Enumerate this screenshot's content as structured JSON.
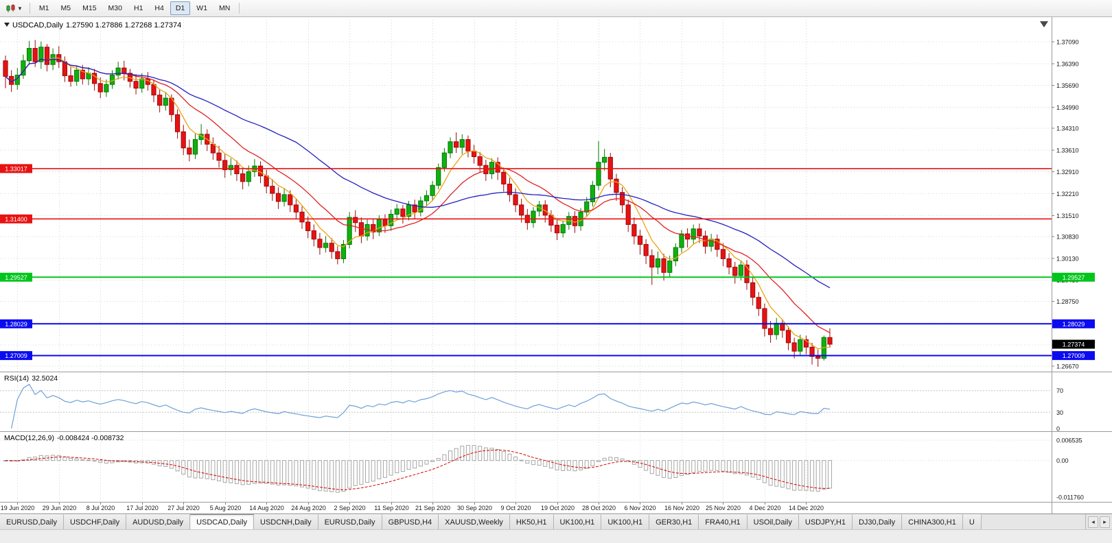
{
  "toolbar": {
    "periods": [
      "M1",
      "M5",
      "M15",
      "M30",
      "H1",
      "H4",
      "D1",
      "W1",
      "MN"
    ],
    "active_period": "D1"
  },
  "chart": {
    "symbol_title": "USDCAD,Daily",
    "ohlc_text": "1.27590 1.27886 1.27268 1.27374"
  },
  "chart_data": {
    "type": "candlestick",
    "symbol": "USDCAD",
    "timeframe": "Daily",
    "ohlc_display": {
      "open": "1.27590",
      "high": "1.27886",
      "low": "1.27268",
      "close": "1.27374"
    },
    "y_ticks": [
      "1.37090",
      "1.36390",
      "1.35690",
      "1.34990",
      "1.34310",
      "1.33610",
      "1.32910",
      "1.32210",
      "1.31510",
      "1.30830",
      "1.30130",
      "1.29430",
      "1.28750",
      "1.28050",
      "1.27350",
      "1.26670"
    ],
    "x_labels": [
      "19 Jun 2020",
      "29 Jun 2020",
      "8 Jul 2020",
      "17 Jul 2020",
      "27 Jul 2020",
      "5 Aug 2020",
      "14 Aug 2020",
      "24 Aug 2020",
      "2 Sep 2020",
      "11 Sep 2020",
      "21 Sep 2020",
      "30 Sep 2020",
      "9 Oct 2020",
      "19 Oct 2020",
      "28 Oct 2020",
      "6 Nov 2020",
      "16 Nov 2020",
      "25 Nov 2020",
      "4 Dec 2020",
      "14 Dec 2020"
    ],
    "x_label_start_index": 2,
    "x_label_step": 7,
    "current_price_tag": {
      "label": "1.27374",
      "price": 1.27374,
      "bg": "#000000",
      "fg": "#ffffff"
    },
    "hlines": [
      {
        "price": 1.33017,
        "label": "1.33017",
        "color": "#e81212",
        "width": 1.6,
        "tags": [
          "left"
        ]
      },
      {
        "price": 1.314,
        "label": "1.31400",
        "color": "#e81212",
        "width": 1.6,
        "tags": [
          "left"
        ]
      },
      {
        "price": 1.29527,
        "label": "1.29527",
        "color": "#00c61c",
        "width": 2,
        "tags": [
          "left",
          "right"
        ]
      },
      {
        "price": 1.28029,
        "label": "1.28029",
        "color": "#0b0bf0",
        "width": 2,
        "tags": [
          "left",
          "right"
        ]
      },
      {
        "price": 1.27009,
        "label": "1.27009",
        "color": "#0b0bf0",
        "width": 2,
        "tags": [
          "left",
          "right"
        ]
      }
    ],
    "ma_lines": [
      {
        "name": "fast-ma",
        "period": 8,
        "color": "#e8a414"
      },
      {
        "name": "mid-ma",
        "period": 20,
        "color": "#e02020"
      },
      {
        "name": "slow-ma",
        "period": 50,
        "color": "#2020c0"
      }
    ],
    "candle_colors": {
      "bull": "#0fb00f",
      "bull_stroke": "#067806",
      "bear": "#e81212",
      "bear_stroke": "#9c0a0a"
    },
    "indicators": {
      "rsi": {
        "name": "RSI(14)",
        "value": "32.5024",
        "period": 14,
        "levels": [
          70,
          30
        ],
        "axis_labels": [
          {
            "v": 70,
            "label": "70"
          },
          {
            "v": 30,
            "label": "30"
          },
          {
            "v": 0,
            "label": "0"
          }
        ],
        "line_color": "#6f9fd8"
      },
      "macd": {
        "name": "MACD(12,26,9)",
        "values": "-0.008424 -0.008732",
        "fast": 12,
        "slow": 26,
        "signal": 9,
        "axis_labels": [
          {
            "v": 0.006535,
            "label": "0.006535"
          },
          {
            "v": 0,
            "label": "0.00"
          },
          {
            "v": -0.01176,
            "label": "-0.011760"
          }
        ],
        "hist_color": "#a6a6a6",
        "signal_color": "#d40000"
      }
    },
    "candles": [
      [
        1.3648,
        1.3665,
        1.356,
        1.3598
      ],
      [
        1.3598,
        1.3618,
        1.3548,
        1.3572
      ],
      [
        1.3572,
        1.3625,
        1.3555,
        1.3602
      ],
      [
        1.3602,
        1.3668,
        1.359,
        1.3648
      ],
      [
        1.3648,
        1.3712,
        1.3635,
        1.3688
      ],
      [
        1.3688,
        1.3715,
        1.3628,
        1.3645
      ],
      [
        1.3645,
        1.371,
        1.3622,
        1.3692
      ],
      [
        1.3692,
        1.3702,
        1.3614,
        1.3636
      ],
      [
        1.3636,
        1.3688,
        1.3618,
        1.3668
      ],
      [
        1.3668,
        1.3695,
        1.3625,
        1.3645
      ],
      [
        1.3645,
        1.3662,
        1.358,
        1.36
      ],
      [
        1.36,
        1.3628,
        1.3565,
        1.3582
      ],
      [
        1.3582,
        1.3632,
        1.3568,
        1.3618
      ],
      [
        1.3618,
        1.3635,
        1.3572,
        1.359
      ],
      [
        1.359,
        1.3628,
        1.357,
        1.3608
      ],
      [
        1.3608,
        1.3622,
        1.3552,
        1.3575
      ],
      [
        1.3575,
        1.3595,
        1.3528,
        1.3548
      ],
      [
        1.3548,
        1.3588,
        1.3532,
        1.3572
      ],
      [
        1.3572,
        1.3618,
        1.3558,
        1.3602
      ],
      [
        1.3602,
        1.3645,
        1.3588,
        1.3625
      ],
      [
        1.3625,
        1.3648,
        1.3585,
        1.3608
      ],
      [
        1.3608,
        1.3622,
        1.3562,
        1.3582
      ],
      [
        1.3582,
        1.3605,
        1.354,
        1.356
      ],
      [
        1.356,
        1.3608,
        1.3545,
        1.359
      ],
      [
        1.359,
        1.3612,
        1.3552,
        1.3572
      ],
      [
        1.3572,
        1.3588,
        1.3515,
        1.3538
      ],
      [
        1.3538,
        1.3555,
        1.3482,
        1.3505
      ],
      [
        1.3505,
        1.3548,
        1.3488,
        1.3528
      ],
      [
        1.3528,
        1.354,
        1.3452,
        1.3475
      ],
      [
        1.3475,
        1.3492,
        1.3398,
        1.342
      ],
      [
        1.342,
        1.3442,
        1.3345,
        1.3368
      ],
      [
        1.3368,
        1.3395,
        1.3325,
        1.3348
      ],
      [
        1.3348,
        1.3415,
        1.3332,
        1.3395
      ],
      [
        1.3395,
        1.3445,
        1.3378,
        1.3412
      ],
      [
        1.3412,
        1.3428,
        1.3358,
        1.338
      ],
      [
        1.338,
        1.3402,
        1.333,
        1.3352
      ],
      [
        1.3352,
        1.3375,
        1.3305,
        1.3328
      ],
      [
        1.3328,
        1.3348,
        1.3272,
        1.3298
      ],
      [
        1.3298,
        1.3335,
        1.328,
        1.3312
      ],
      [
        1.3312,
        1.3328,
        1.3262,
        1.3285
      ],
      [
        1.3285,
        1.3305,
        1.3235,
        1.326
      ],
      [
        1.326,
        1.3312,
        1.3245,
        1.3292
      ],
      [
        1.3292,
        1.3332,
        1.3275,
        1.331
      ],
      [
        1.331,
        1.3325,
        1.3255,
        1.3278
      ],
      [
        1.3278,
        1.3298,
        1.3222,
        1.3245
      ],
      [
        1.3245,
        1.3268,
        1.3198,
        1.3222
      ],
      [
        1.3222,
        1.3242,
        1.3172,
        1.3196
      ],
      [
        1.3196,
        1.3238,
        1.318,
        1.3218
      ],
      [
        1.3218,
        1.3232,
        1.3162,
        1.3185
      ],
      [
        1.3185,
        1.3205,
        1.3138,
        1.3162
      ],
      [
        1.3162,
        1.318,
        1.3108,
        1.313
      ],
      [
        1.313,
        1.3148,
        1.3078,
        1.3102
      ],
      [
        1.3102,
        1.3122,
        1.3052,
        1.3075
      ],
      [
        1.3075,
        1.3095,
        1.3025,
        1.3048
      ],
      [
        1.3048,
        1.3085,
        1.3032,
        1.3062
      ],
      [
        1.3062,
        1.3078,
        1.3012,
        1.3035
      ],
      [
        1.3035,
        1.3052,
        1.2994,
        1.3012
      ],
      [
        1.3012,
        1.3072,
        1.2998,
        1.3058
      ],
      [
        1.3058,
        1.3162,
        1.3045,
        1.3145
      ],
      [
        1.3145,
        1.3168,
        1.3098,
        1.3128
      ],
      [
        1.3128,
        1.3145,
        1.3062,
        1.3085
      ],
      [
        1.3085,
        1.3138,
        1.307,
        1.3122
      ],
      [
        1.3122,
        1.314,
        1.3075,
        1.3098
      ],
      [
        1.3098,
        1.3152,
        1.3085,
        1.3138
      ],
      [
        1.3138,
        1.3155,
        1.3095,
        1.3118
      ],
      [
        1.3118,
        1.317,
        1.3102,
        1.3155
      ],
      [
        1.3155,
        1.3188,
        1.3138,
        1.3172
      ],
      [
        1.3172,
        1.3185,
        1.3125,
        1.3148
      ],
      [
        1.3148,
        1.3198,
        1.3135,
        1.3185
      ],
      [
        1.3185,
        1.3202,
        1.314,
        1.3162
      ],
      [
        1.3162,
        1.3212,
        1.3148,
        1.3198
      ],
      [
        1.3198,
        1.3232,
        1.3182,
        1.3215
      ],
      [
        1.3215,
        1.3262,
        1.3198,
        1.3248
      ],
      [
        1.3248,
        1.3318,
        1.3235,
        1.3305
      ],
      [
        1.3305,
        1.3368,
        1.3292,
        1.3352
      ],
      [
        1.3352,
        1.3402,
        1.3335,
        1.3388
      ],
      [
        1.3388,
        1.3418,
        1.3352,
        1.337
      ],
      [
        1.337,
        1.3412,
        1.3348,
        1.3395
      ],
      [
        1.3395,
        1.3408,
        1.3338,
        1.3358
      ],
      [
        1.3358,
        1.3378,
        1.3318,
        1.334
      ],
      [
        1.334,
        1.3355,
        1.3288,
        1.3312
      ],
      [
        1.3312,
        1.333,
        1.3262,
        1.3285
      ],
      [
        1.3285,
        1.3335,
        1.3268,
        1.3322
      ],
      [
        1.3322,
        1.3338,
        1.3265,
        1.329
      ],
      [
        1.329,
        1.3305,
        1.3228,
        1.3252
      ],
      [
        1.3252,
        1.3272,
        1.3195,
        1.3218
      ],
      [
        1.3218,
        1.3238,
        1.3162,
        1.3185
      ],
      [
        1.3185,
        1.3205,
        1.3128,
        1.3152
      ],
      [
        1.3152,
        1.3172,
        1.3105,
        1.3128
      ],
      [
        1.3128,
        1.3178,
        1.3112,
        1.3165
      ],
      [
        1.3165,
        1.3198,
        1.3148,
        1.3185
      ],
      [
        1.3185,
        1.32,
        1.3128,
        1.3152
      ],
      [
        1.3152,
        1.3168,
        1.3098,
        1.312
      ],
      [
        1.312,
        1.314,
        1.3072,
        1.3095
      ],
      [
        1.3095,
        1.3135,
        1.308,
        1.3122
      ],
      [
        1.3122,
        1.3162,
        1.3105,
        1.3148
      ],
      [
        1.3148,
        1.3165,
        1.3095,
        1.3118
      ],
      [
        1.3118,
        1.3175,
        1.3102,
        1.3162
      ],
      [
        1.3162,
        1.321,
        1.3148,
        1.3195
      ],
      [
        1.3195,
        1.3262,
        1.318,
        1.3248
      ],
      [
        1.3248,
        1.339,
        1.3232,
        1.3322
      ],
      [
        1.3322,
        1.3365,
        1.3295,
        1.3338
      ],
      [
        1.3338,
        1.3352,
        1.3242,
        1.3268
      ],
      [
        1.3268,
        1.3285,
        1.3198,
        1.3225
      ],
      [
        1.3225,
        1.3242,
        1.3158,
        1.3185
      ],
      [
        1.3185,
        1.3202,
        1.3098,
        1.3122
      ],
      [
        1.3122,
        1.3145,
        1.3058,
        1.3085
      ],
      [
        1.3085,
        1.3105,
        1.3025,
        1.3058
      ],
      [
        1.3058,
        1.3075,
        1.2995,
        1.3022
      ],
      [
        1.3022,
        1.3042,
        1.2928,
        1.2985
      ],
      [
        1.2985,
        1.3035,
        1.2962,
        1.3012
      ],
      [
        1.3012,
        1.3028,
        1.2942,
        1.2968
      ],
      [
        1.2968,
        1.3022,
        1.2952,
        1.3005
      ],
      [
        1.3005,
        1.3062,
        1.2988,
        1.3048
      ],
      [
        1.3048,
        1.3105,
        1.3032,
        1.3092
      ],
      [
        1.3092,
        1.311,
        1.3048,
        1.3075
      ],
      [
        1.3075,
        1.3122,
        1.3058,
        1.3108
      ],
      [
        1.3108,
        1.3125,
        1.3062,
        1.3085
      ],
      [
        1.3085,
        1.3102,
        1.3028,
        1.3052
      ],
      [
        1.3052,
        1.3092,
        1.3035,
        1.3075
      ],
      [
        1.3075,
        1.309,
        1.3018,
        1.3042
      ],
      [
        1.3042,
        1.3062,
        1.2988,
        1.3012
      ],
      [
        1.3012,
        1.303,
        1.2962,
        1.2985
      ],
      [
        1.2985,
        1.3002,
        1.2932,
        1.2958
      ],
      [
        1.2958,
        1.3005,
        1.2942,
        1.2992
      ],
      [
        1.2992,
        1.3008,
        1.2912,
        1.2935
      ],
      [
        1.2935,
        1.2952,
        1.2862,
        1.2888
      ],
      [
        1.2888,
        1.2905,
        1.2828,
        1.2852
      ],
      [
        1.2852,
        1.2868,
        1.2762,
        1.2788
      ],
      [
        1.2788,
        1.2812,
        1.2742,
        1.2768
      ],
      [
        1.2768,
        1.2822,
        1.2752,
        1.2805
      ],
      [
        1.2805,
        1.2818,
        1.2758,
        1.2782
      ],
      [
        1.2782,
        1.2795,
        1.2718,
        1.2742
      ],
      [
        1.2742,
        1.2758,
        1.2692,
        1.2715
      ],
      [
        1.2715,
        1.2768,
        1.2702,
        1.2752
      ],
      [
        1.2752,
        1.2765,
        1.2705,
        1.2728
      ],
      [
        1.2728,
        1.2742,
        1.2672,
        1.2698
      ],
      [
        1.2698,
        1.272,
        1.2665,
        1.2692
      ],
      [
        1.2692,
        1.2765,
        1.2685,
        1.2759
      ],
      [
        1.2759,
        1.27886,
        1.27268,
        1.27374
      ]
    ]
  },
  "tabs": {
    "items": [
      "EURUSD,Daily",
      "USDCHF,Daily",
      "AUDUSD,Daily",
      "USDCAD,Daily",
      "USDCNH,Daily",
      "EURUSD,Daily",
      "GBPUSD,H4",
      "XAUUSD,Weekly",
      "HK50,H1",
      "UK100,H1",
      "UK100,H1",
      "GER30,H1",
      "FRA40,H1",
      "USOil,Daily",
      "USDJPY,H1",
      "DJ30,Daily",
      "CHINA300,H1",
      "U"
    ],
    "active_index": 3
  }
}
